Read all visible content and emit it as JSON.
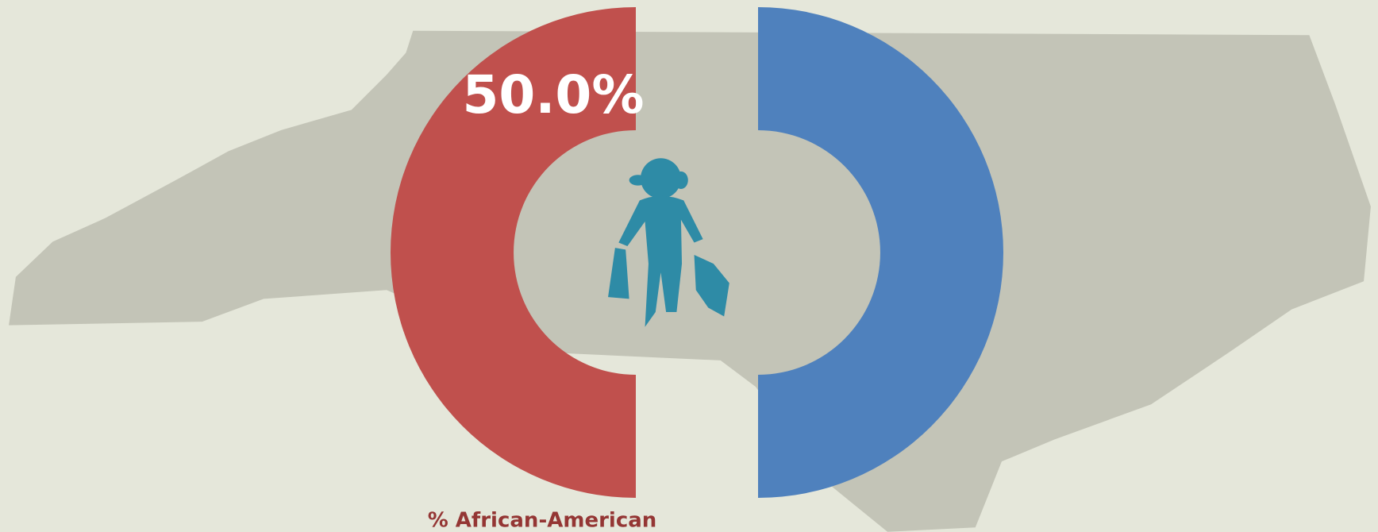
{
  "chart_data": {
    "type": "donut",
    "categories": [
      "% African-American",
      null
    ],
    "values": [
      50,
      50
    ],
    "value_labels": [
      "50.0%",
      null
    ],
    "colors": [
      "#c0504d",
      "#4f81bd"
    ]
  }
}
